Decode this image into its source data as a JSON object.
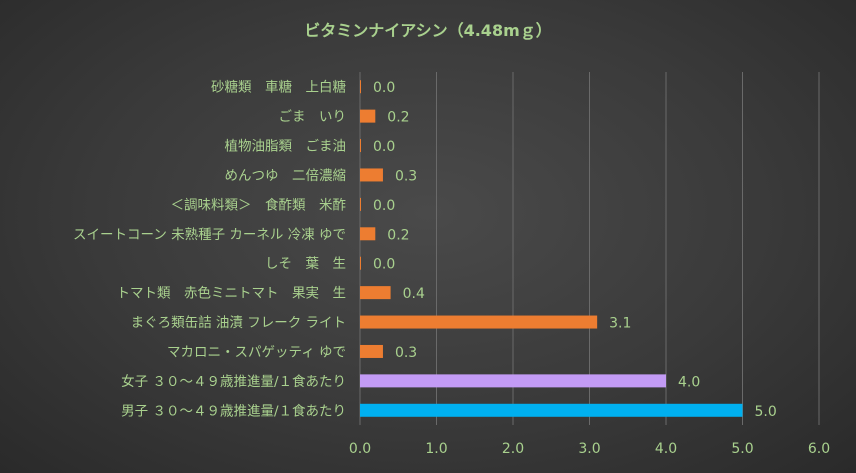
{
  "chart_data": {
    "type": "bar",
    "orientation": "horizontal",
    "title": "ビタミンナイアシン（4.48mｇ）",
    "categories": [
      "砂糖類　車糖　上白糖",
      "ごま　いり",
      "植物油脂類　ごま油",
      "めんつゆ　二倍濃縮",
      "＜調味料類＞　食酢類　米酢",
      "スイートコーン 未熟種子 カーネル 冷凍 ゆで",
      "しそ　葉　生",
      "トマト類　赤色ミニトマト　果実　生",
      "まぐろ類缶詰 油漬 フレーク ライト",
      "マカロニ・スパゲッティ ゆで",
      "女子 ３０～４９歳推進量/１食あたり",
      "男子 ３０～４９歳推進量/１食あたり"
    ],
    "values": [
      0.0,
      0.2,
      0.0,
      0.3,
      0.0,
      0.2,
      0.0,
      0.4,
      3.1,
      0.3,
      4.0,
      5.0
    ],
    "value_labels": [
      "0.0",
      "0.2",
      "0.0",
      "0.3",
      "0.0",
      "0.2",
      "0.0",
      "0.4",
      "3.1",
      "0.3",
      "4.0",
      "5.0"
    ],
    "bar_colors": [
      "#ED7D31",
      "#ED7D31",
      "#ED7D31",
      "#ED7D31",
      "#ED7D31",
      "#ED7D31",
      "#ED7D31",
      "#ED7D31",
      "#ED7D31",
      "#ED7D31",
      "#C39BF5",
      "#00B0F0"
    ],
    "xlim": [
      0,
      6
    ],
    "xticks": [
      "0.0",
      "1.0",
      "2.0",
      "3.0",
      "4.0",
      "5.0",
      "6.0"
    ],
    "grid": "vertical",
    "legend": "none",
    "text_color": "#A9D18E",
    "grid_color": "#6a6a6a"
  }
}
